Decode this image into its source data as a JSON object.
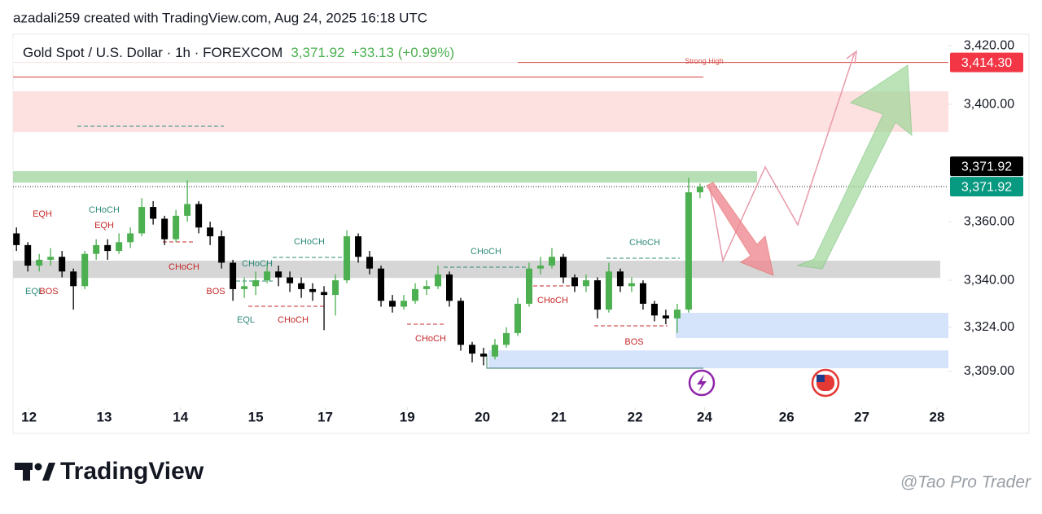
{
  "header": {
    "credit": "azadali259 created with TradingView.com, Aug 24, 2025 16:18 UTC"
  },
  "chart_data": {
    "type": "candlestick",
    "title": "Gold Spot / U.S. Dollar · 1h · FOREXCOM",
    "last_price": {
      "value": 3371.92,
      "label": "3,371.92"
    },
    "change_label": "+33.13 (+0.99%)",
    "strong_high": {
      "value": 3414.3,
      "label": "3,414.30",
      "text": "Strong High"
    },
    "up_color": "#4caf50",
    "down_color": "#000000",
    "open": [
      3356,
      3352,
      3345,
      3347,
      3348,
      3343,
      3338,
      3349,
      3352,
      3350,
      3353,
      3356,
      3365,
      3361,
      3354,
      3362,
      3366,
      3358,
      3355,
      3346,
      3337,
      3338,
      3340,
      3343,
      3341,
      3339,
      3337,
      3336,
      3335,
      3340,
      3355,
      3348,
      3344,
      3333,
      3331,
      3333,
      3337,
      3338,
      3342,
      3333,
      3318,
      3315,
      3314,
      3318,
      3322,
      3332,
      3344,
      3345,
      3348,
      3341,
      3338,
      3340,
      3330,
      3343,
      3338,
      3339,
      3332,
      3328,
      3327,
      3330,
      3370
    ],
    "high": [
      3358,
      3353,
      3349,
      3351,
      3350,
      3344,
      3350,
      3354,
      3354,
      3356,
      3358,
      3368,
      3367,
      3362,
      3364,
      3374,
      3367,
      3360,
      3357,
      3347,
      3341,
      3343,
      3346,
      3345,
      3343,
      3341,
      3339,
      3338,
      3342,
      3357,
      3356,
      3350,
      3345,
      3335,
      3335,
      3339,
      3340,
      3345,
      3343,
      3334,
      3319,
      3317,
      3320,
      3324,
      3334,
      3346,
      3348,
      3351,
      3349,
      3342,
      3342,
      3341,
      3346,
      3344,
      3341,
      3340,
      3333,
      3330,
      3332,
      3375,
      3373
    ],
    "low": [
      3350,
      3343,
      3343,
      3345,
      3341,
      3330,
      3337,
      3347,
      3347,
      3349,
      3351,
      3355,
      3359,
      3352,
      3353,
      3360,
      3356,
      3352,
      3344,
      3333,
      3334,
      3335,
      3339,
      3338,
      3336,
      3334,
      3333,
      3323,
      3328,
      3339,
      3346,
      3342,
      3331,
      3329,
      3330,
      3332,
      3335,
      3337,
      3331,
      3316,
      3312,
      3311,
      3313,
      3317,
      3321,
      3331,
      3342,
      3344,
      3339,
      3336,
      3336,
      3327,
      3329,
      3336,
      3336,
      3330,
      3326,
      3325,
      3322,
      3329,
      3368
    ],
    "close": [
      3352,
      3345,
      3347,
      3348,
      3343,
      3338,
      3349,
      3352,
      3350,
      3353,
      3356,
      3365,
      3361,
      3354,
      3362,
      3366,
      3358,
      3355,
      3346,
      3337,
      3338,
      3340,
      3343,
      3341,
      3339,
      3337,
      3336,
      3335,
      3340,
      3355,
      3348,
      3344,
      3333,
      3331,
      3333,
      3337,
      3338,
      3342,
      3333,
      3318,
      3315,
      3314,
      3318,
      3322,
      3332,
      3344,
      3345,
      3348,
      3341,
      3338,
      3340,
      3330,
      3343,
      3338,
      3339,
      3332,
      3328,
      3327,
      3330,
      3370,
      3371.92
    ],
    "xlim": [
      -0.3,
      81.8
    ],
    "xticks": [
      {
        "value": 1.1,
        "label": "12"
      },
      {
        "value": 7.7,
        "label": "13"
      },
      {
        "value": 14.4,
        "label": "14"
      },
      {
        "value": 21,
        "label": "15"
      },
      {
        "value": 27.1,
        "label": "17"
      },
      {
        "value": 34.3,
        "label": "19"
      },
      {
        "value": 40.9,
        "label": "20"
      },
      {
        "value": 47.6,
        "label": "21"
      },
      {
        "value": 54.3,
        "label": "22"
      },
      {
        "value": 60.4,
        "label": "24"
      },
      {
        "value": 67.6,
        "label": "26"
      },
      {
        "value": 74.2,
        "label": "27"
      },
      {
        "value": 80.8,
        "label": "28"
      }
    ],
    "ylim": [
      3296.7,
      3423.9
    ],
    "yticks": [
      {
        "value": 3420,
        "label": "3,420.00"
      },
      {
        "value": 3400,
        "label": "3,400.00"
      },
      {
        "value": 3360,
        "label": "3,360.00"
      },
      {
        "value": 3340,
        "label": "3,340.00"
      },
      {
        "value": 3324,
        "label": "3,324.00"
      },
      {
        "value": 3309,
        "label": "3,309.00"
      }
    ],
    "zones": [
      {
        "low": 3390.6,
        "high": 3404.4,
        "color": "#fde0e0"
      },
      {
        "low": 3373.3,
        "high": 3377.2,
        "color": "#b7dfb5"
      },
      {
        "low": 3340.8,
        "high": 3346.7,
        "color": "#d6d6d6"
      },
      {
        "low": 3320.3,
        "high": 3328.9,
        "color": "#d6e4fb"
      },
      {
        "low": 3310.0,
        "high": 3316.1,
        "color": "#d6e4fb"
      }
    ],
    "annotations": [
      "EQH",
      "CHoCH",
      "EQH",
      "CHoCH",
      "EQL",
      "BOS",
      "BOS",
      "CHoCH",
      "CHoCH",
      "EQL",
      "CHoCH",
      "CHoCH",
      "CHoCH",
      "CHoCH",
      "CHoCH",
      "BOS"
    ]
  },
  "footer": {
    "brand": "TradingView",
    "watermark": "@Tao Pro Trader"
  }
}
